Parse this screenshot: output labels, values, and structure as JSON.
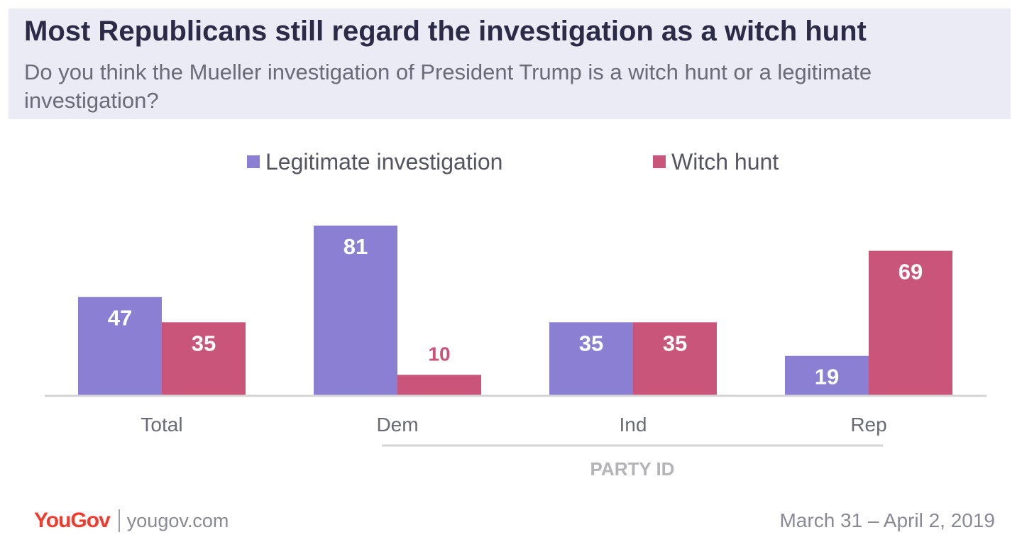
{
  "header": {
    "title": "Most Republicans still regard the investigation as a witch hunt",
    "subtitle": "Do you think the Mueller investigation of President Trump is a witch hunt or a legitimate investigation?"
  },
  "chart_data": {
    "type": "bar",
    "categories": [
      "Total",
      "Dem",
      "Ind",
      "Rep"
    ],
    "series": [
      {
        "name": "Legitimate investigation",
        "color": "#8b7fd4",
        "values": [
          47,
          81,
          35,
          19
        ]
      },
      {
        "name": "Witch hunt",
        "color": "#c9557b",
        "values": [
          35,
          10,
          35,
          69
        ]
      }
    ],
    "group_label": "PARTY ID",
    "group_spans_categories": [
      "Dem",
      "Ind",
      "Rep"
    ],
    "ylim": [
      0,
      81
    ],
    "grid": false,
    "legend_position": "top-center",
    "data_labels": true
  },
  "footer": {
    "logo": "YouGov",
    "site": "yougov.com",
    "date": "March 31 – April 2, 2019"
  }
}
